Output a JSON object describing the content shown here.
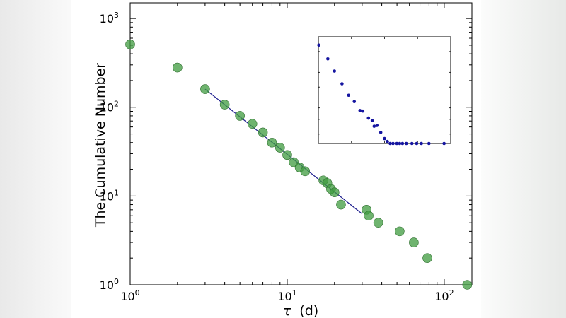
{
  "chart_data": [
    {
      "type": "scatter",
      "scale": {
        "x": "log",
        "y": "log"
      },
      "xlabel_symbol": "τ",
      "xlabel_unit": "(d)",
      "ylabel": "The Cumulative Number",
      "xlim": [
        1,
        150
      ],
      "ylim": [
        1,
        1500
      ],
      "x_ticks": [
        {
          "value": 1,
          "base": "10",
          "exp": "0"
        },
        {
          "value": 10,
          "base": "10",
          "exp": "1"
        },
        {
          "value": 100,
          "base": "10",
          "exp": "2"
        }
      ],
      "y_ticks": [
        {
          "value": 1,
          "base": "10",
          "exp": "0"
        },
        {
          "value": 10,
          "base": "10",
          "exp": "1"
        },
        {
          "value": 100,
          "base": "10",
          "exp": "2"
        },
        {
          "value": 1000,
          "base": "10",
          "exp": "3"
        }
      ],
      "grid": false,
      "marker_color": "#3f9b3f",
      "line_color": "#1f1f8f",
      "points": [
        [
          1,
          510
        ],
        [
          2,
          280
        ],
        [
          3,
          160
        ],
        [
          4,
          107
        ],
        [
          5,
          80
        ],
        [
          6,
          65
        ],
        [
          7,
          52
        ],
        [
          8,
          40
        ],
        [
          9,
          35
        ],
        [
          10,
          29
        ],
        [
          11,
          24
        ],
        [
          12,
          21
        ],
        [
          13,
          19
        ],
        [
          17,
          15
        ],
        [
          18,
          14
        ],
        [
          19,
          12
        ],
        [
          20,
          11
        ],
        [
          22,
          8
        ],
        [
          32,
          7
        ],
        [
          33,
          6
        ],
        [
          38,
          5
        ],
        [
          52,
          4
        ],
        [
          64,
          3
        ],
        [
          78,
          2
        ],
        [
          140,
          1
        ]
      ],
      "fit_line": {
        "x": [
          3,
          30
        ],
        "y": [
          160,
          6.3
        ]
      }
    },
    {
      "type": "scatter",
      "inset": true,
      "scale": {
        "x": "linear",
        "y": "log"
      },
      "marker_color": "#1515a0",
      "points": [
        [
          0.5,
          340
        ],
        [
          10,
          260
        ],
        [
          17,
          205
        ],
        [
          25,
          160
        ],
        [
          32,
          128
        ],
        [
          38,
          113
        ],
        [
          44,
          95
        ],
        [
          47,
          94
        ],
        [
          53,
          82
        ],
        [
          57,
          78
        ],
        [
          59,
          70
        ],
        [
          62,
          71
        ],
        [
          66,
          62
        ],
        [
          70,
          55
        ],
        [
          73,
          52
        ],
        [
          76,
          50
        ],
        [
          79,
          50
        ],
        [
          83,
          50
        ],
        [
          86,
          50
        ],
        [
          89,
          50
        ],
        [
          93,
          50
        ],
        [
          99,
          50
        ],
        [
          104,
          50
        ],
        [
          109,
          50
        ],
        [
          117,
          50
        ],
        [
          133,
          50
        ]
      ]
    }
  ]
}
